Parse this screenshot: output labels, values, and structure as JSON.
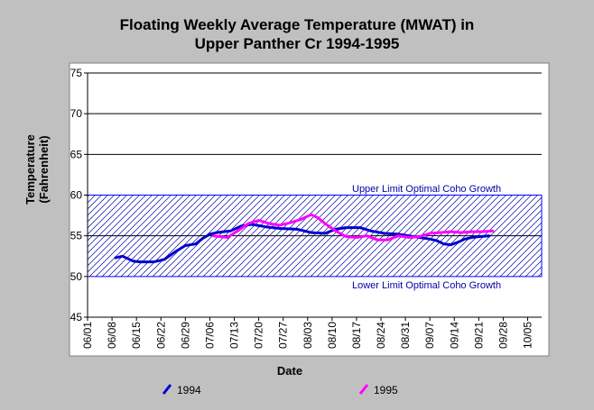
{
  "chart_data": {
    "type": "line",
    "title": "Floating Weekly Average Temperature (MWAT) in",
    "subtitle": "Upper Panther Cr 1994-1995",
    "xlabel": "Date",
    "ylabel": "Temperature",
    "ylabel2": "(Fahrenheit)",
    "ylim": [
      45,
      75
    ],
    "yticks": [
      45,
      50,
      55,
      60,
      65,
      70,
      75
    ],
    "x_dates": [
      "06/01",
      "06/08",
      "06/15",
      "06/22",
      "06/29",
      "07/06",
      "07/13",
      "07/20",
      "07/27",
      "08/03",
      "08/10",
      "08/17",
      "08/24",
      "08/31",
      "09/07",
      "09/14",
      "09/21",
      "09/28",
      "10/05"
    ],
    "xlim_days": [
      0,
      130
    ],
    "grid": "horizontal",
    "band": {
      "lower": 50,
      "upper": 60,
      "upper_label": "Upper Limit Optimal Coho Growth",
      "lower_label": "Lower Limit Optimal Coho Growth",
      "color": "#0000ff"
    },
    "series": [
      {
        "name": "1994",
        "color": "#0000cc",
        "x": [
          8,
          10,
          13,
          15,
          19,
          22,
          25,
          28,
          31,
          33,
          35,
          37,
          39,
          41,
          44,
          47,
          51,
          55,
          60,
          64,
          68,
          71,
          74,
          76,
          78,
          81,
          85,
          89,
          92,
          95,
          98,
          100,
          102,
          104,
          106,
          108,
          110,
          112,
          115
        ],
        "y": [
          52.3,
          52.5,
          51.9,
          51.8,
          51.8,
          52.1,
          53.0,
          53.8,
          54.0,
          54.7,
          55.2,
          55.4,
          55.5,
          55.6,
          56.2,
          56.4,
          56.1,
          55.9,
          55.8,
          55.4,
          55.3,
          55.8,
          56.0,
          56.0,
          56.0,
          55.6,
          55.3,
          55.2,
          55.0,
          54.8,
          54.6,
          54.4,
          54.0,
          53.9,
          54.2,
          54.6,
          54.8,
          54.9,
          55.0
        ]
      },
      {
        "name": "1995",
        "color": "#ff00ff",
        "x": [
          36,
          40,
          43,
          46,
          49,
          52,
          55,
          58,
          61,
          64,
          66,
          68,
          71,
          74,
          77,
          80,
          83,
          86,
          89,
          92,
          95,
          98,
          101,
          104,
          107,
          110,
          113,
          116
        ],
        "y": [
          55.0,
          54.8,
          55.6,
          56.5,
          56.9,
          56.5,
          56.3,
          56.6,
          57.0,
          57.6,
          57.2,
          56.5,
          55.6,
          54.9,
          54.8,
          55.0,
          54.5,
          54.5,
          55.0,
          54.8,
          54.9,
          55.3,
          55.4,
          55.5,
          55.4,
          55.5,
          55.5,
          55.6
        ]
      }
    ]
  }
}
